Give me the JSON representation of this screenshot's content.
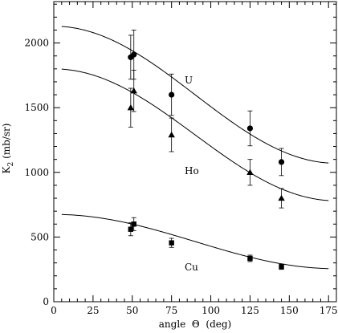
{
  "chart_data": {
    "type": "scatter",
    "xlabel": "angle  Θ  (deg)",
    "ylabel": "K",
    "ylabel_subscript": "2",
    "ylabel_units": " (mb/sr)",
    "xlim": [
      0,
      180
    ],
    "ylim": [
      0,
      2320
    ],
    "x_ticks": [
      0,
      25,
      50,
      75,
      100,
      125,
      150,
      175
    ],
    "y_ticks": [
      0,
      500,
      1000,
      1500,
      2000
    ],
    "grid": false,
    "legend": "none",
    "series": [
      {
        "name": "U",
        "marker": "circle",
        "points": [
          {
            "x": 49,
            "y": 1890,
            "err": 170
          },
          {
            "x": 51,
            "y": 1910,
            "err": 190
          },
          {
            "x": 75,
            "y": 1600,
            "err": 160
          },
          {
            "x": 125,
            "y": 1340,
            "err": 135
          },
          {
            "x": 145,
            "y": 1080,
            "err": 105
          }
        ],
        "curve": {
          "a": 1600,
          "b": 530,
          "start": 5,
          "end": 175
        }
      },
      {
        "name": "Ho",
        "marker": "triangle",
        "points": [
          {
            "x": 49,
            "y": 1500,
            "err": 150
          },
          {
            "x": 51,
            "y": 1630,
            "err": 160
          },
          {
            "x": 75,
            "y": 1290,
            "err": 130
          },
          {
            "x": 125,
            "y": 1000,
            "err": 100
          },
          {
            "x": 145,
            "y": 800,
            "err": 75
          }
        ],
        "curve": {
          "a": 1290,
          "b": 510,
          "start": 5,
          "end": 175
        }
      },
      {
        "name": "Cu",
        "marker": "square",
        "points": [
          {
            "x": 49,
            "y": 560,
            "err": 50
          },
          {
            "x": 51,
            "y": 600,
            "err": 50
          },
          {
            "x": 75,
            "y": 455,
            "err": 35
          },
          {
            "x": 125,
            "y": 335,
            "err": 25
          },
          {
            "x": 145,
            "y": 270,
            "err": 20
          }
        ],
        "curve": {
          "a": 465,
          "b": 210,
          "start": 5,
          "end": 175
        }
      }
    ]
  }
}
